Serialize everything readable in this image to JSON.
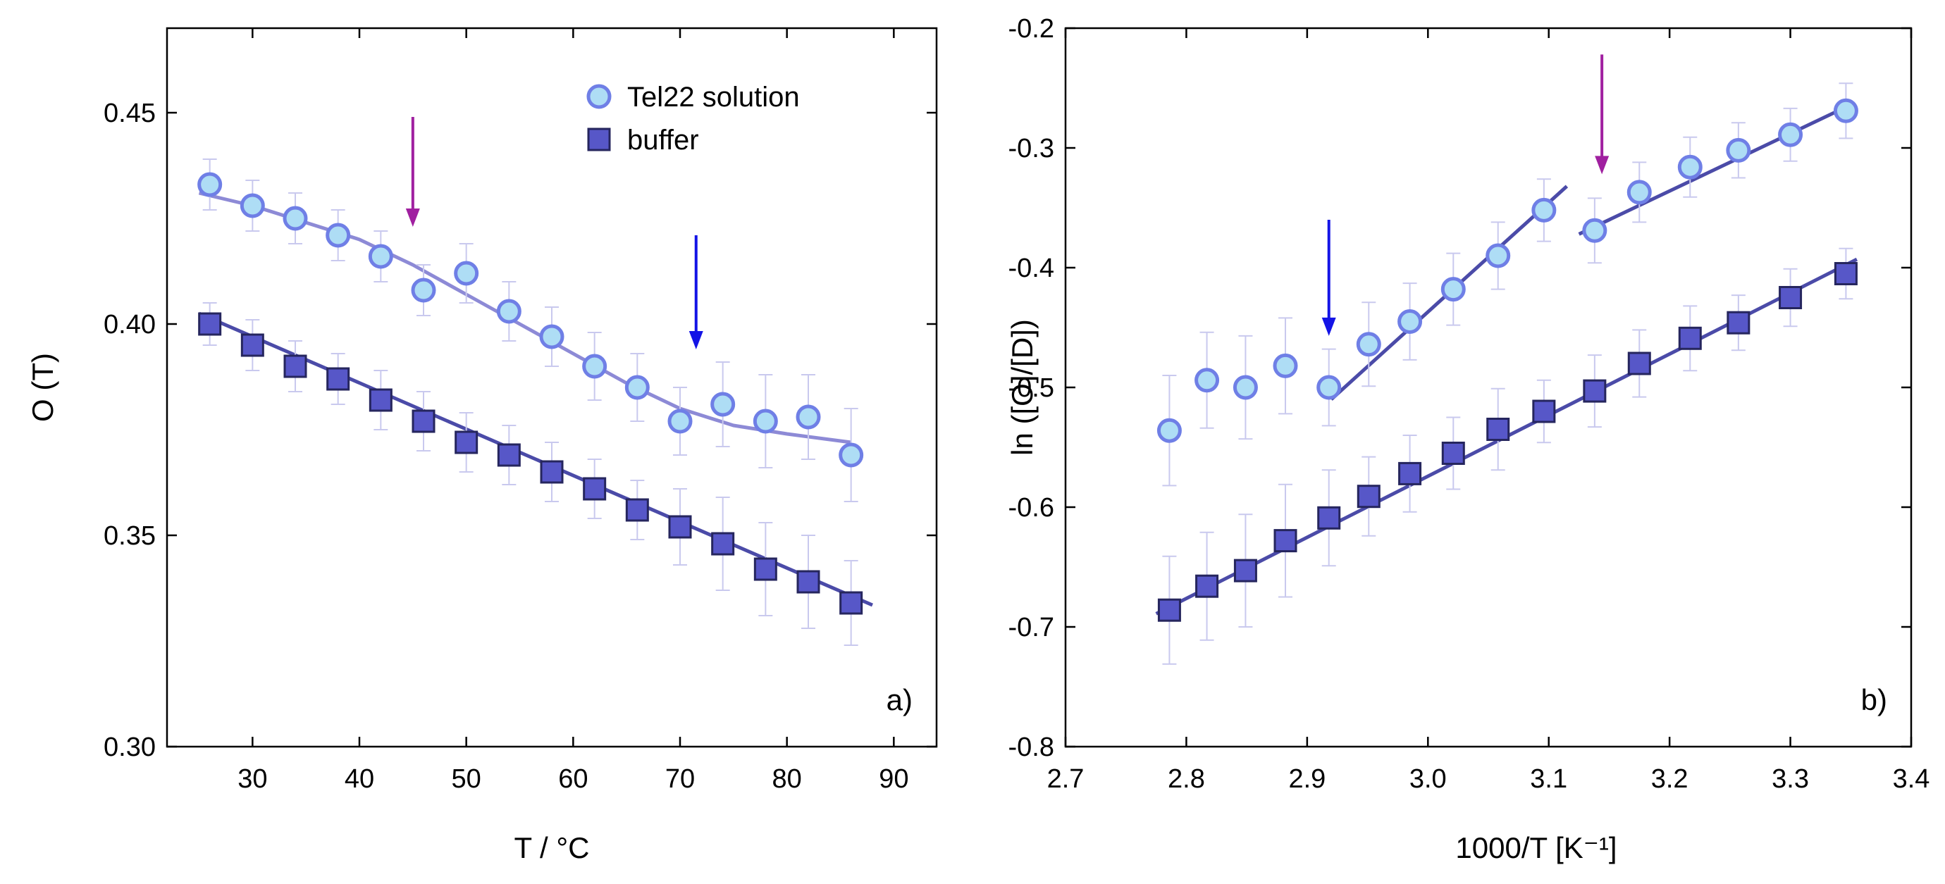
{
  "chart_data": [
    {
      "panel": "a)",
      "type": "scatter",
      "xlabel": "T / °C",
      "ylabel": "O (T)",
      "xlim": [
        22,
        94
      ],
      "ylim": [
        0.3,
        0.47
      ],
      "xticks": [
        30,
        40,
        50,
        60,
        70,
        80,
        90
      ],
      "yticks": [
        0.3,
        0.35,
        0.4,
        0.45
      ],
      "legend_position": "top-center",
      "series": [
        {
          "name": "Tel22 solution",
          "marker": "circle",
          "x": [
            26,
            30,
            34,
            38,
            42,
            46,
            50,
            54,
            58,
            62,
            66,
            70,
            74,
            78,
            82,
            86
          ],
          "y": [
            0.433,
            0.428,
            0.425,
            0.421,
            0.416,
            0.408,
            0.412,
            0.403,
            0.397,
            0.39,
            0.385,
            0.377,
            0.381,
            0.377,
            0.378,
            0.369
          ],
          "err": [
            0.006,
            0.006,
            0.006,
            0.006,
            0.006,
            0.006,
            0.007,
            0.007,
            0.007,
            0.008,
            0.008,
            0.008,
            0.01,
            0.011,
            0.01,
            0.011
          ],
          "fit": {
            "x": [
              25,
              30,
              35,
              40,
              45,
              50,
              55,
              60,
              65,
              70,
              75,
              80,
              86
            ],
            "y": [
              0.431,
              0.428,
              0.424,
              0.42,
              0.414,
              0.407,
              0.4,
              0.393,
              0.386,
              0.38,
              0.376,
              0.374,
              0.372
            ]
          }
        },
        {
          "name": "buffer",
          "marker": "square",
          "x": [
            26,
            30,
            34,
            38,
            42,
            46,
            50,
            54,
            58,
            62,
            66,
            70,
            74,
            78,
            82,
            86
          ],
          "y": [
            0.4,
            0.395,
            0.39,
            0.387,
            0.382,
            0.377,
            0.372,
            0.369,
            0.365,
            0.361,
            0.356,
            0.352,
            0.348,
            0.342,
            0.339,
            0.334
          ],
          "err": [
            0.005,
            0.006,
            0.006,
            0.006,
            0.007,
            0.007,
            0.007,
            0.007,
            0.007,
            0.007,
            0.007,
            0.009,
            0.011,
            0.011,
            0.011,
            0.01
          ],
          "fit": {
            "x": [
              25,
              88
            ],
            "y": [
              0.4025,
              0.3335
            ]
          }
        }
      ],
      "arrows": [
        {
          "x": 45,
          "y_from": 0.449,
          "y_to": 0.423,
          "color": "#a020a0"
        },
        {
          "x": 71.5,
          "y_from": 0.421,
          "y_to": 0.394,
          "color": "#1414e6"
        }
      ]
    },
    {
      "panel": "b)",
      "type": "scatter",
      "xlabel": "1000/T [K⁻¹]",
      "ylabel": "ln ([O]/[D])",
      "xlim": [
        2.7,
        3.4
      ],
      "ylim": [
        -0.8,
        -0.2
      ],
      "xticks": [
        2.7,
        2.8,
        2.9,
        3.0,
        3.1,
        3.2,
        3.3,
        3.4
      ],
      "xtick_labels": [
        "2.7",
        "2.8",
        "2.9",
        "3.0",
        "3.1",
        "3.2",
        "3.3",
        "3.4"
      ],
      "yticks": [
        -0.8,
        -0.7,
        -0.6,
        -0.5,
        -0.4,
        -0.3,
        -0.2
      ],
      "yticks_labels": [
        "-0.8",
        "-0.7",
        "-0.6",
        "-0.5",
        "-0.4",
        "-0.3",
        "-0.2"
      ],
      "series": [
        {
          "name": "Tel22 solution",
          "marker": "circle",
          "x": [
            2.786,
            2.817,
            2.849,
            2.882,
            2.918,
            2.951,
            2.985,
            3.021,
            3.058,
            3.096,
            3.138,
            3.175,
            3.217,
            3.257,
            3.3,
            3.346
          ],
          "y": [
            -0.536,
            -0.494,
            -0.5,
            -0.482,
            -0.5,
            -0.464,
            -0.445,
            -0.418,
            -0.39,
            -0.352,
            -0.369,
            -0.337,
            -0.316,
            -0.302,
            -0.289,
            -0.269
          ],
          "err": [
            0.046,
            0.04,
            0.043,
            0.04,
            0.032,
            0.035,
            0.032,
            0.03,
            0.028,
            0.026,
            0.027,
            0.025,
            0.025,
            0.023,
            0.022,
            0.023
          ],
          "fits": [
            {
              "x": [
                2.92,
                3.115
              ],
              "y": [
                -0.51,
                -0.332
              ]
            },
            {
              "x": [
                3.125,
                3.35
              ],
              "y": [
                -0.372,
                -0.264
              ]
            }
          ]
        },
        {
          "name": "buffer",
          "marker": "square",
          "x": [
            2.786,
            2.817,
            2.849,
            2.882,
            2.918,
            2.951,
            2.985,
            3.021,
            3.058,
            3.096,
            3.138,
            3.175,
            3.217,
            3.257,
            3.3,
            3.346
          ],
          "y": [
            -0.686,
            -0.666,
            -0.653,
            -0.628,
            -0.609,
            -0.591,
            -0.572,
            -0.555,
            -0.535,
            -0.52,
            -0.503,
            -0.48,
            -0.459,
            -0.446,
            -0.425,
            -0.405
          ],
          "err": [
            0.045,
            0.045,
            0.047,
            0.047,
            0.04,
            0.033,
            0.032,
            0.03,
            0.034,
            0.026,
            0.03,
            0.028,
            0.027,
            0.023,
            0.024,
            0.021
          ],
          "fit": {
            "x": [
              2.775,
              3.355
            ],
            "y": [
              -0.689,
              -0.393
            ]
          }
        }
      ],
      "arrows": [
        {
          "x": 2.918,
          "y_from": -0.36,
          "y_to": -0.457,
          "color": "#1414e6"
        },
        {
          "x": 3.144,
          "y_from": -0.222,
          "y_to": -0.322,
          "color": "#a020a0"
        }
      ]
    }
  ]
}
